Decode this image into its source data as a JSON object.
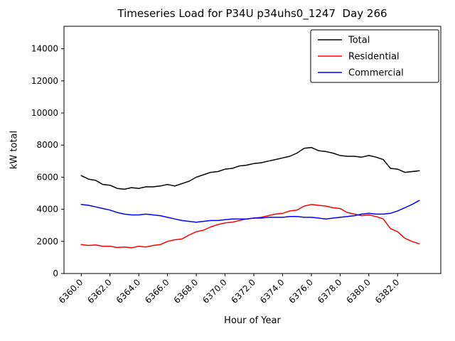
{
  "chart_data": {
    "type": "line",
    "title": "Timeseries Load for P34U p34uhs0_1247  Day 266",
    "xlabel": "Hour of Year",
    "ylabel": "kW total",
    "xlim": [
      6358.8,
      6385.0
    ],
    "ylim": [
      0,
      15400
    ],
    "grid": false,
    "legend_position": "upper right",
    "xticks": [
      6360,
      6362,
      6364,
      6366,
      6368,
      6370,
      6372,
      6374,
      6376,
      6378,
      6380,
      6382
    ],
    "xtick_labels": [
      "6360.0",
      "6362.0",
      "6364.0",
      "6366.0",
      "6368.0",
      "6370.0",
      "6372.0",
      "6374.0",
      "6376.0",
      "6378.0",
      "6380.0",
      "6382.0"
    ],
    "yticks": [
      0,
      2000,
      4000,
      6000,
      8000,
      10000,
      12000,
      14000
    ],
    "ytick_labels": [
      "0",
      "2000",
      "4000",
      "6000",
      "8000",
      "10000",
      "12000",
      "14000"
    ],
    "x": [
      6360.0,
      6360.5,
      6361.0,
      6361.5,
      6362.0,
      6362.5,
      6363.0,
      6363.5,
      6364.0,
      6364.5,
      6365.0,
      6365.5,
      6366.0,
      6366.5,
      6367.0,
      6367.5,
      6368.0,
      6368.5,
      6369.0,
      6369.5,
      6370.0,
      6370.5,
      6371.0,
      6371.5,
      6372.0,
      6372.5,
      6373.0,
      6373.5,
      6374.0,
      6374.5,
      6375.0,
      6375.5,
      6376.0,
      6376.5,
      6377.0,
      6377.5,
      6378.0,
      6378.5,
      6379.0,
      6379.5,
      6380.0,
      6380.5,
      6381.0,
      6381.5,
      6382.0,
      6382.5,
      6383.0,
      6383.5
    ],
    "series": [
      {
        "name": "Total",
        "color": "#000000",
        "values": [
          6100,
          5880,
          5800,
          5550,
          5500,
          5300,
          5250,
          5350,
          5300,
          5400,
          5400,
          5450,
          5550,
          5450,
          5600,
          5750,
          6000,
          6150,
          6300,
          6350,
          6500,
          6550,
          6700,
          6750,
          6850,
          6900,
          7000,
          7100,
          7200,
          7300,
          7500,
          7800,
          7850,
          7650,
          7600,
          7500,
          7350,
          7300,
          7300,
          7250,
          7350,
          7250,
          7100,
          6550,
          6500,
          6300,
          6350,
          6400
        ]
      },
      {
        "name": "Residential",
        "color": "#ff0000",
        "values": [
          1800,
          1750,
          1780,
          1700,
          1700,
          1620,
          1650,
          1600,
          1700,
          1650,
          1750,
          1800,
          2000,
          2100,
          2150,
          2400,
          2600,
          2700,
          2900,
          3050,
          3150,
          3200,
          3300,
          3400,
          3450,
          3500,
          3600,
          3700,
          3750,
          3900,
          3950,
          4200,
          4300,
          4250,
          4200,
          4100,
          4050,
          3800,
          3700,
          3600,
          3650,
          3550,
          3400,
          2800,
          2600,
          2200,
          2000,
          1850
        ]
      },
      {
        "name": "Commercial",
        "color": "#0000ff",
        "values": [
          4300,
          4250,
          4150,
          4050,
          3950,
          3800,
          3700,
          3650,
          3650,
          3700,
          3650,
          3600,
          3500,
          3400,
          3300,
          3250,
          3200,
          3250,
          3300,
          3300,
          3350,
          3400,
          3400,
          3400,
          3450,
          3450,
          3500,
          3500,
          3500,
          3550,
          3550,
          3500,
          3500,
          3450,
          3400,
          3450,
          3500,
          3550,
          3600,
          3700,
          3750,
          3700,
          3700,
          3750,
          3900,
          4100,
          4300,
          4550
        ]
      }
    ]
  }
}
